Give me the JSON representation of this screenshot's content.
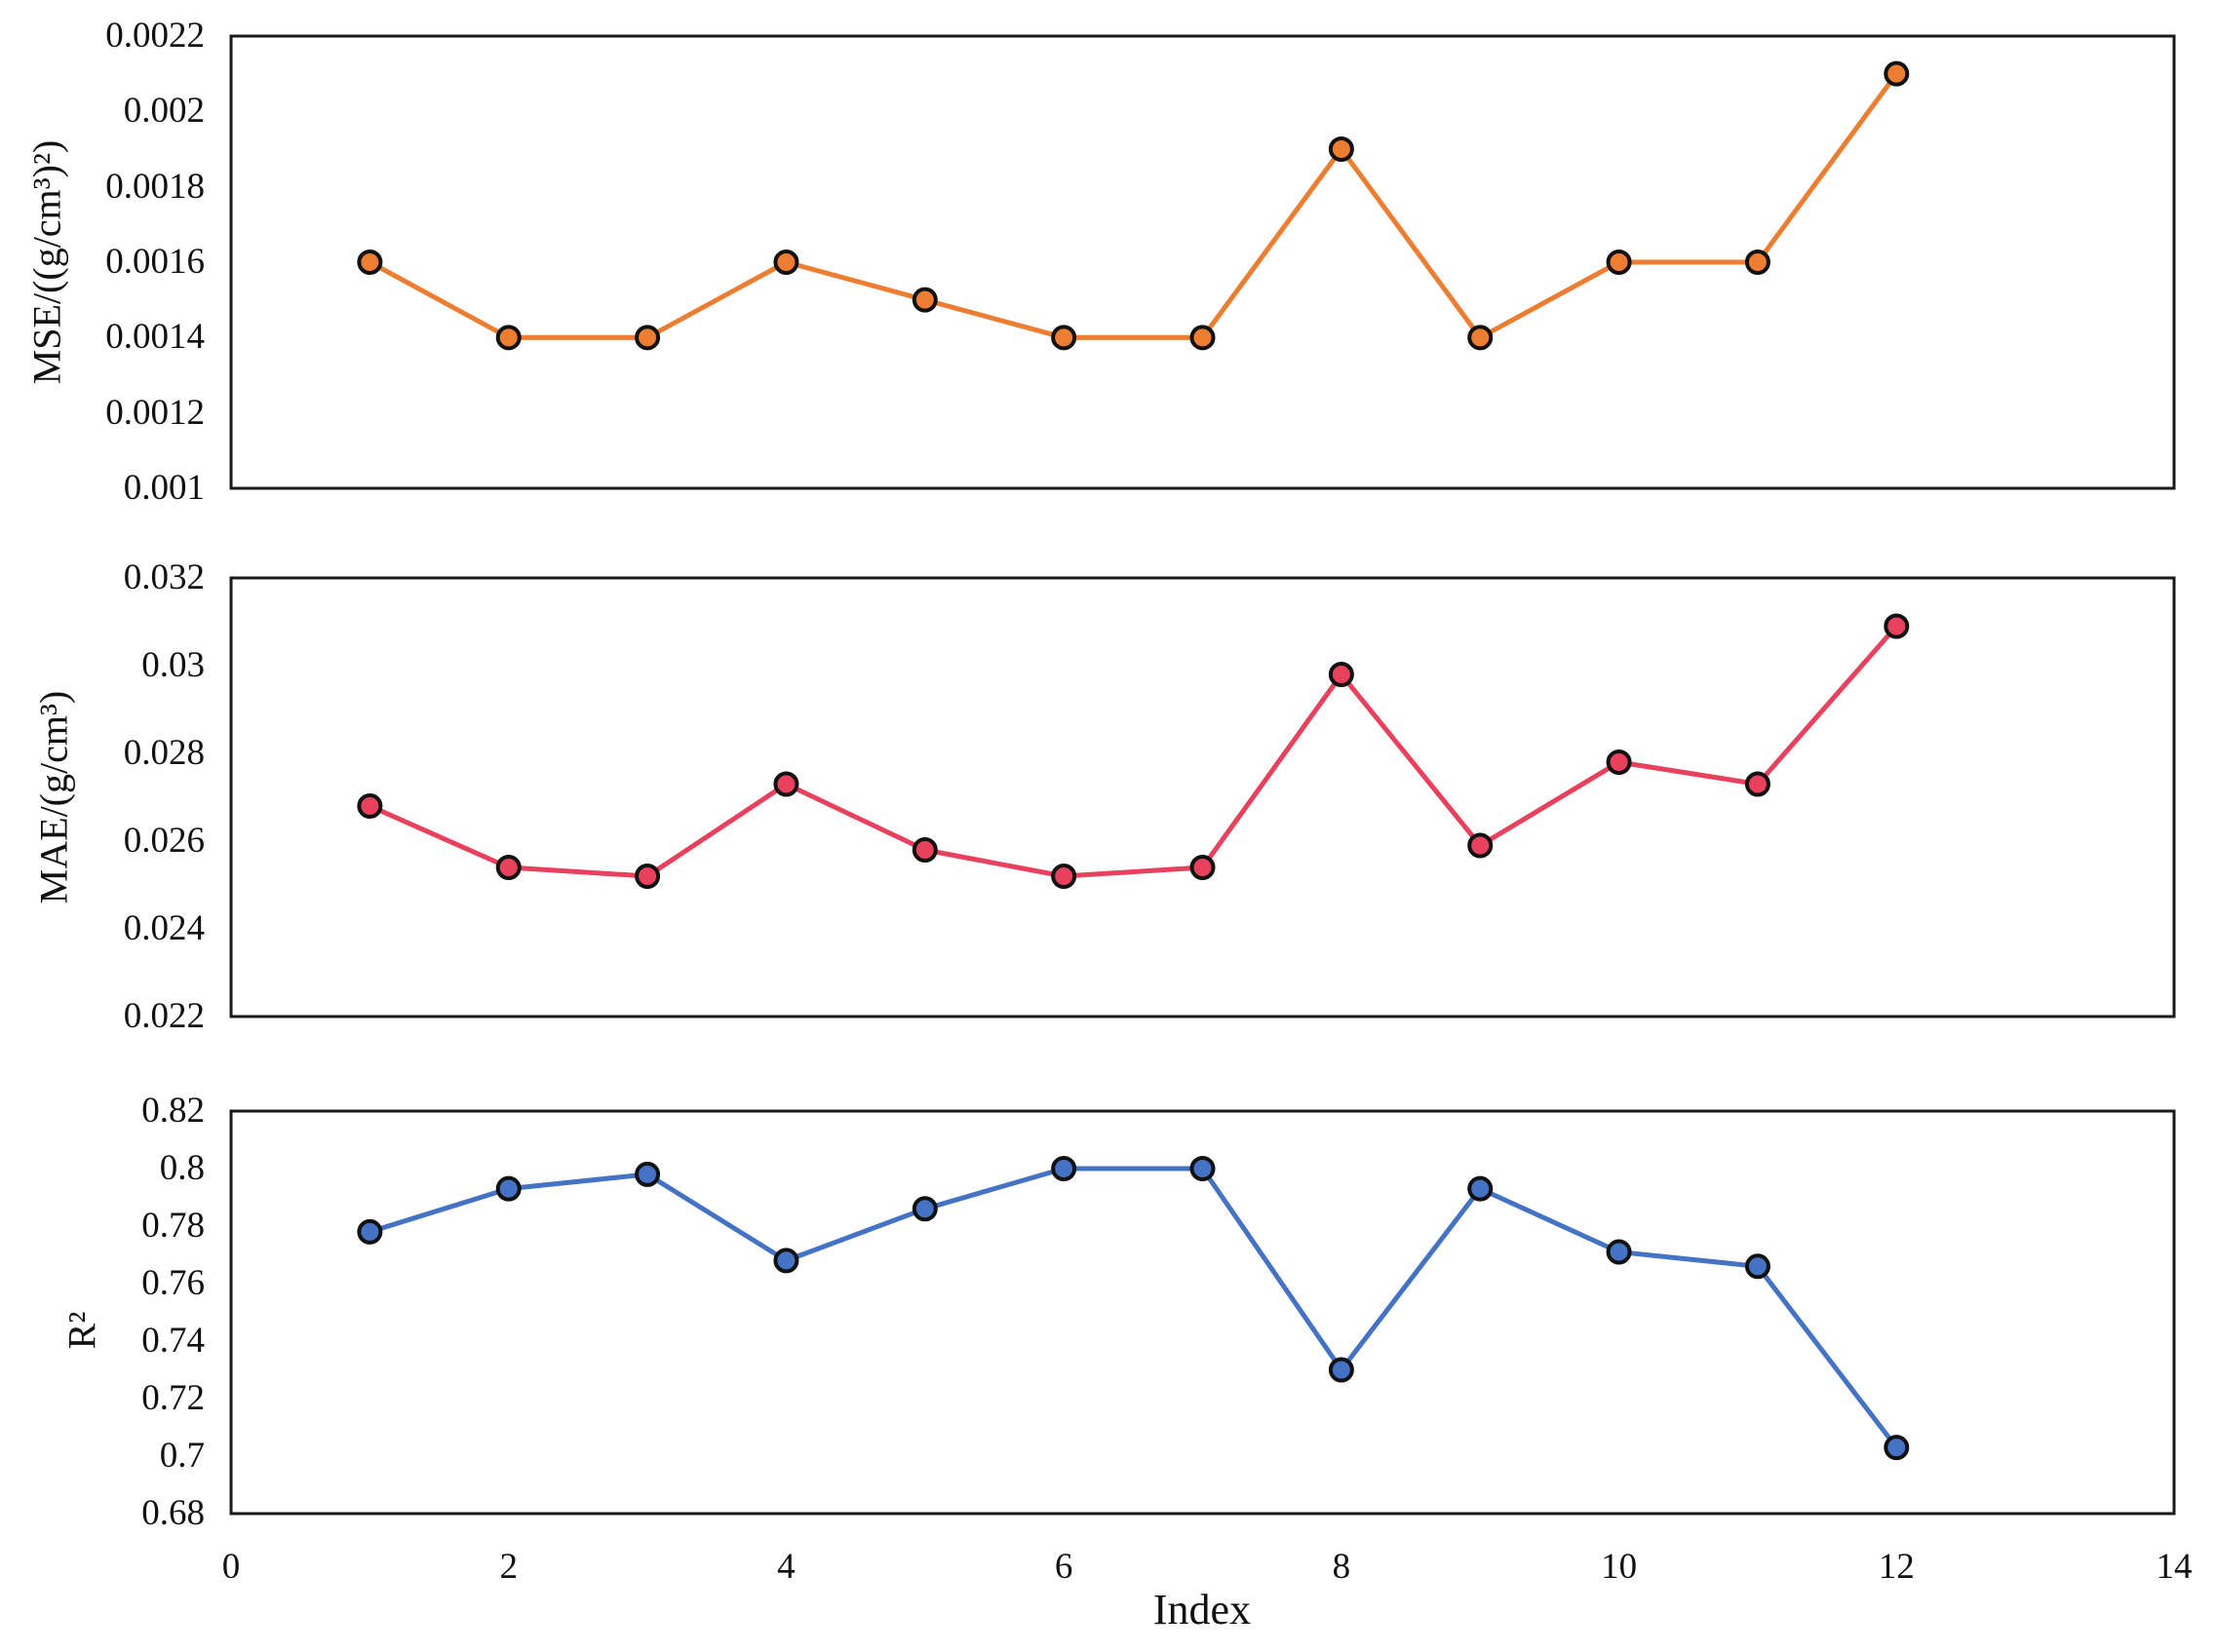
{
  "figure": {
    "xlabel": "Index",
    "x_range": [
      0,
      14
    ],
    "x_ticks": [
      "0",
      "2",
      "4",
      "6",
      "8",
      "10",
      "12",
      "14"
    ],
    "background": "#ffffff",
    "text_color": "#111111",
    "frame_color": "#1a1a1a"
  },
  "chart_data": [
    {
      "type": "line",
      "name": "mse",
      "ylabel": "MSE/((g/cm³)²)",
      "color": "#ED7D31",
      "marker": "circle",
      "marker_outline": "#111111",
      "grid": false,
      "x": [
        1,
        2,
        3,
        4,
        5,
        6,
        7,
        8,
        9,
        10,
        11,
        12
      ],
      "values": [
        0.0016,
        0.0014,
        0.0014,
        0.0016,
        0.0015,
        0.0014,
        0.0014,
        0.0019,
        0.0014,
        0.0016,
        0.0016,
        0.0021
      ],
      "ylim": [
        0.001,
        0.0022
      ],
      "y_ticks": [
        "0.0022",
        "0.002",
        "0.0018",
        "0.0016",
        "0.0014",
        "0.0012",
        "0.001"
      ]
    },
    {
      "type": "line",
      "name": "mae",
      "ylabel": "MAE/(g/cm³)",
      "color": "#E8415D",
      "marker": "circle",
      "marker_outline": "#111111",
      "grid": false,
      "x": [
        1,
        2,
        3,
        4,
        5,
        6,
        7,
        8,
        9,
        10,
        11,
        12
      ],
      "values": [
        0.0268,
        0.0254,
        0.0252,
        0.0273,
        0.0258,
        0.0252,
        0.0254,
        0.0298,
        0.0259,
        0.0278,
        0.0273,
        0.0309
      ],
      "ylim": [
        0.022,
        0.032
      ],
      "y_ticks": [
        "0.032",
        "0.03",
        "0.028",
        "0.026",
        "0.024",
        "0.022"
      ]
    },
    {
      "type": "line",
      "name": "r2",
      "ylabel": "R²",
      "color": "#4472C4",
      "marker": "circle",
      "marker_outline": "#111111",
      "grid": false,
      "x": [
        1,
        2,
        3,
        4,
        5,
        6,
        7,
        8,
        9,
        10,
        11,
        12
      ],
      "values": [
        0.778,
        0.793,
        0.798,
        0.768,
        0.786,
        0.8,
        0.8,
        0.73,
        0.793,
        0.771,
        0.766,
        0.703
      ],
      "ylim": [
        0.68,
        0.82
      ],
      "y_ticks": [
        "0.82",
        "0.8",
        "0.78",
        "0.76",
        "0.74",
        "0.72",
        "0.7",
        "0.68"
      ]
    }
  ]
}
